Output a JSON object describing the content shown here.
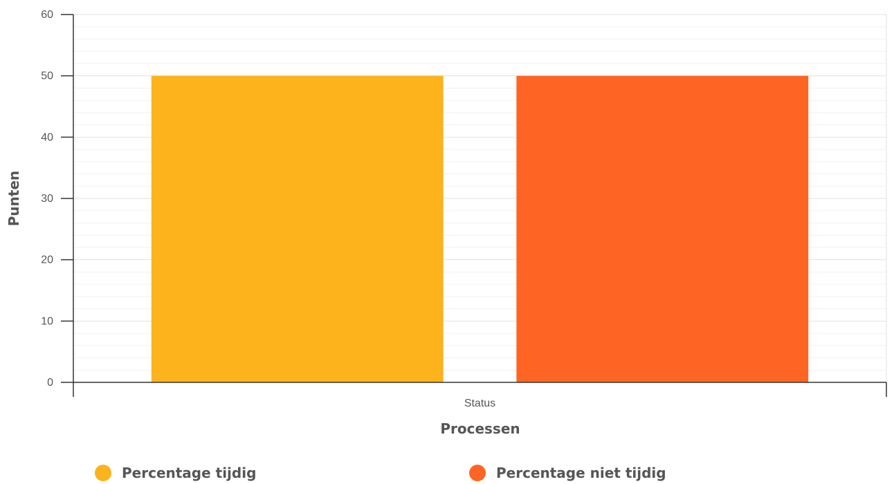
{
  "chart_data": {
    "type": "bar",
    "categories": [
      "Status"
    ],
    "series": [
      {
        "name": "Percentage tijdig",
        "values": [
          50
        ],
        "color": "#fcb31c"
      },
      {
        "name": "Percentage niet tijdig",
        "values": [
          50
        ],
        "color": "#fe6524"
      }
    ],
    "xlabel": "Processen",
    "ylabel": "Punten",
    "ylim": [
      0,
      60
    ],
    "yticks": [
      0,
      10,
      20,
      30,
      40,
      50,
      60
    ],
    "grid": true,
    "legend_position": "bottom"
  }
}
